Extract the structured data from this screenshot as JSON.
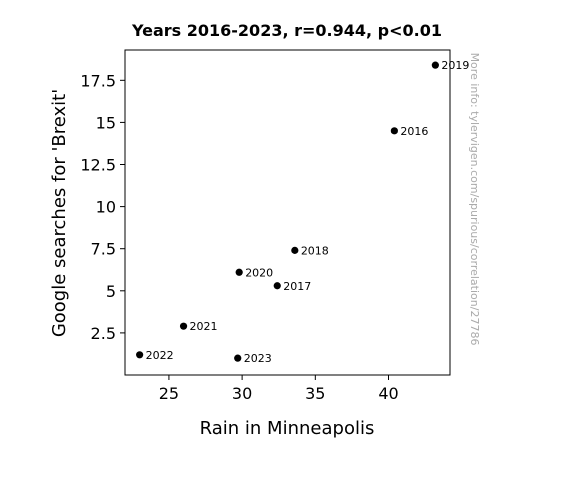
{
  "chart_data": {
    "type": "scatter",
    "title": "Years 2016-2023, r=0.944, p<0.01",
    "xlabel": "Rain in Minneapolis",
    "ylabel": "Google searches for 'Brexit'",
    "xlim": [
      22,
      44.2
    ],
    "ylim": [
      0,
      19.3
    ],
    "x_ticks": [
      25,
      30,
      35,
      40
    ],
    "y_ticks": [
      2.5,
      5,
      7.5,
      10,
      12.5,
      15,
      17.5
    ],
    "x_tick_labels": [
      "25",
      "30",
      "35",
      "40"
    ],
    "y_tick_labels": [
      "2.5",
      "5",
      "7.5",
      "10",
      "12.5",
      "15",
      "17.5"
    ],
    "point_color": "#000000",
    "grid": false,
    "points": [
      {
        "label": "2016",
        "x": 40.4,
        "y": 14.5
      },
      {
        "label": "2017",
        "x": 32.4,
        "y": 5.3
      },
      {
        "label": "2018",
        "x": 33.6,
        "y": 7.4
      },
      {
        "label": "2019",
        "x": 43.2,
        "y": 18.4
      },
      {
        "label": "2020",
        "x": 29.8,
        "y": 6.1
      },
      {
        "label": "2021",
        "x": 26.0,
        "y": 2.9
      },
      {
        "label": "2022",
        "x": 23.0,
        "y": 1.2
      },
      {
        "label": "2023",
        "x": 29.7,
        "y": 1.0
      }
    ],
    "watermark": "More info: tylervigen.com/spurious/correlation/27786"
  }
}
